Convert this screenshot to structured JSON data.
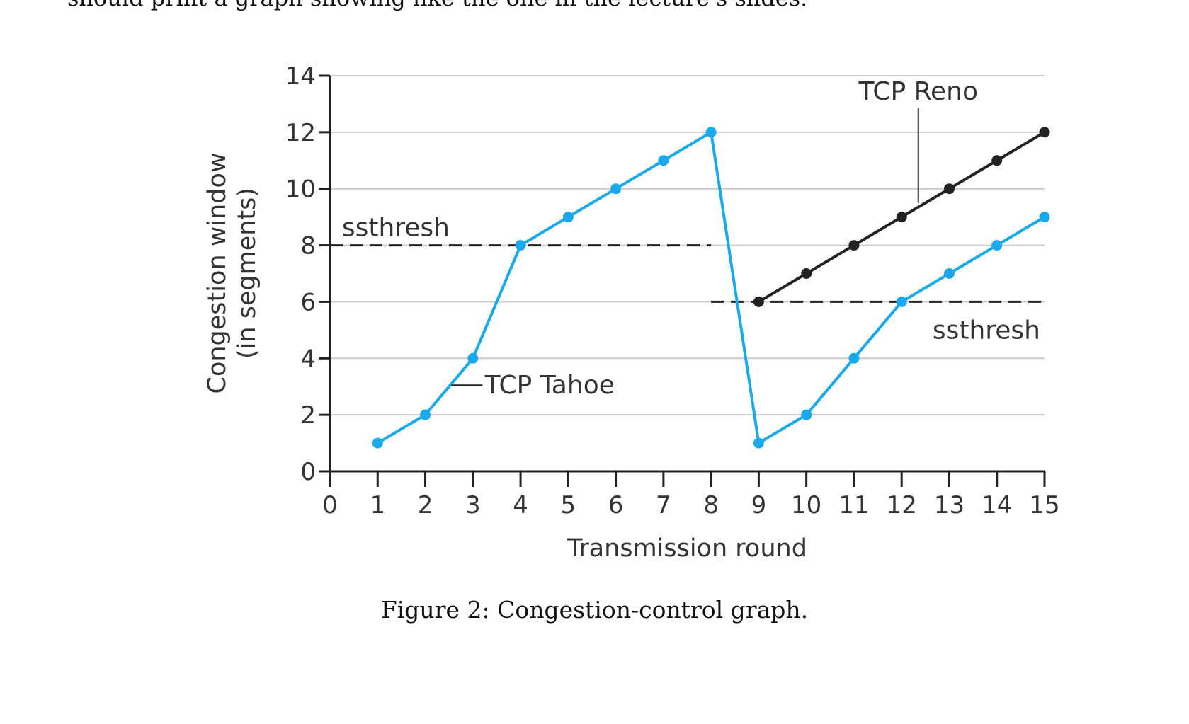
{
  "top_text": "should print a graph showing like the one in the lecture's slides.",
  "caption": "Figure 2: Congestion-control graph.",
  "colors": {
    "tahoe": "#1aa9ea",
    "reno": "#222222",
    "grid": "#cccccc",
    "axis": "#222222"
  },
  "chart_data": {
    "type": "line",
    "title": "",
    "xlabel": "Transmission round",
    "ylabel_lines": [
      "Congestion window",
      "(in segments)"
    ],
    "xlim": [
      0,
      15
    ],
    "ylim": [
      0,
      14
    ],
    "x_ticks": [
      0,
      1,
      2,
      3,
      4,
      5,
      6,
      7,
      8,
      9,
      10,
      11,
      12,
      13,
      14,
      15
    ],
    "y_ticks": [
      0,
      2,
      4,
      6,
      8,
      10,
      12,
      14
    ],
    "grid": "horizontal",
    "series": [
      {
        "name": "TCP Tahoe",
        "x": [
          1,
          2,
          3,
          4,
          5,
          6,
          7,
          8,
          9,
          10,
          11,
          12,
          13,
          14,
          15
        ],
        "y": [
          1,
          2,
          4,
          8,
          9,
          10,
          11,
          12,
          1,
          2,
          4,
          6,
          7,
          8,
          9
        ]
      },
      {
        "name": "TCP Reno",
        "x": [
          9,
          10,
          11,
          12,
          13,
          14,
          15
        ],
        "y": [
          6,
          7,
          8,
          9,
          10,
          11,
          12
        ]
      }
    ],
    "thresholds": [
      {
        "label": "ssthresh",
        "y": 8,
        "x_start": 0,
        "x_end": 8
      },
      {
        "label": "ssthresh",
        "y": 6,
        "x_start": 8,
        "x_end": 15
      }
    ]
  }
}
